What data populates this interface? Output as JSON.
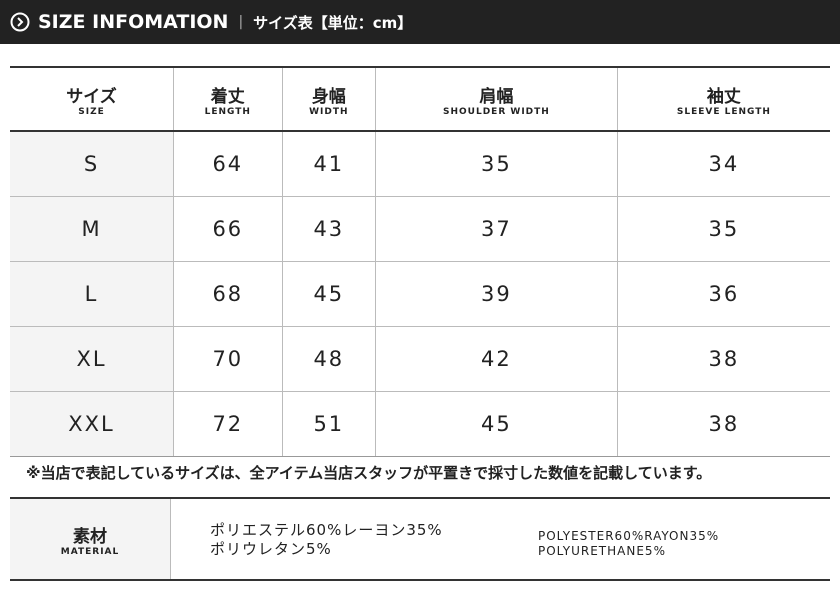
{
  "header": {
    "title": "SIZE INFOMATION",
    "subtitle": "サイズ表【単位：cm】"
  },
  "table": {
    "columns": [
      {
        "ja": "サイズ",
        "en": "SIZE"
      },
      {
        "ja": "着丈",
        "en": "LENGTH"
      },
      {
        "ja": "身幅",
        "en": "WIDTH"
      },
      {
        "ja": "肩幅",
        "en": "SHOULDER WIDTH"
      },
      {
        "ja": "袖丈",
        "en": "SLEEVE LENGTH"
      }
    ],
    "rows": [
      [
        "S",
        "64",
        "41",
        "35",
        "34"
      ],
      [
        "M",
        "66",
        "43",
        "37",
        "35"
      ],
      [
        "L",
        "68",
        "45",
        "39",
        "36"
      ],
      [
        "XL",
        "70",
        "48",
        "42",
        "38"
      ],
      [
        "XXL",
        "72",
        "51",
        "45",
        "38"
      ]
    ]
  },
  "note": "※当店で表記しているサイズは、全アイテム当店スタッフが平置きで採寸した数値を記載しています。",
  "material": {
    "label_ja": "素材",
    "label_en": "MATERIAL",
    "ja_lines": [
      "ポリエステル60%レーヨン35%",
      "ポリウレタン5%"
    ],
    "en_lines": [
      "POLYESTER60%RAYON35%",
      "POLYURETHANE5%"
    ]
  }
}
